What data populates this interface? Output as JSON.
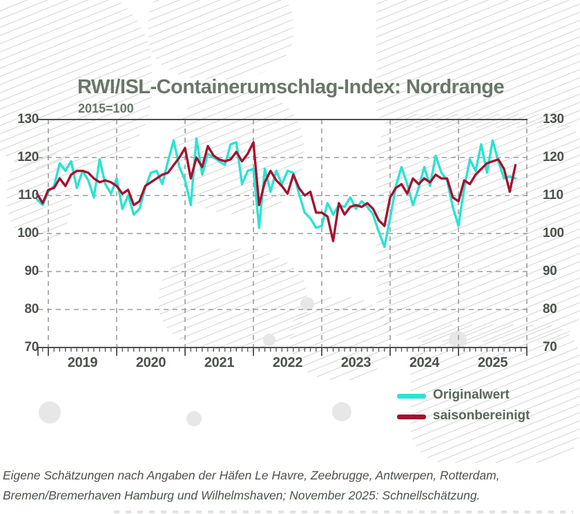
{
  "title": "RWI/ISL-Containerumschlag-Index: Nordrange",
  "subtitle": "2015=100",
  "legend": {
    "original_label": "Originalwert",
    "seasonal_label": "saisonbereinigt"
  },
  "footnote": {
    "line1": "Eigene Schätzungen nach Angaben der Häfen Le Havre, Zeebrugge, Antwerpen, Rotterdam,",
    "line2": "Bremen/Bremerhaven Hamburg und Wilhelmshaven; November 2025: Schnellschätzung."
  },
  "colors": {
    "original": "#2be3d3",
    "seasonal": "#a4122f",
    "title_text": "#697769",
    "axis_text": "#4a524a",
    "axis_line": "#4d4d4d",
    "gridline": "#9c9c9c"
  },
  "chart_data": {
    "type": "line",
    "title": "RWI/ISL-Containerumschlag-Index: Nordrange",
    "subtitle": "2015=100",
    "ylim": [
      70,
      130
    ],
    "y_ticks": [
      130,
      120,
      110,
      100,
      90,
      80,
      70
    ],
    "y_axis_sides": "both",
    "grid": "dashed",
    "x_year_labels": [
      "2019",
      "2020",
      "2021",
      "2022",
      "2023",
      "2024",
      "2025"
    ],
    "x_start_month": "2018-11",
    "x_end_month": "2025-11",
    "legend_position": "bottom-right",
    "series": [
      {
        "name": "Originalwert",
        "color": "#2be3d3",
        "values": [
          109.0,
          107.5,
          111.0,
          112.5,
          118.5,
          116.5,
          119.0,
          112.0,
          116.5,
          114.0,
          109.5,
          119.5,
          113.0,
          110.5,
          114.5,
          106.5,
          110.0,
          105.0,
          106.5,
          112.0,
          116.0,
          116.5,
          113.0,
          119.0,
          124.5,
          117.5,
          114.0,
          107.5,
          125.0,
          115.5,
          121.0,
          120.0,
          119.0,
          118.0,
          123.5,
          124.0,
          113.0,
          116.5,
          117.0,
          101.5,
          117.0,
          111.0,
          116.5,
          113.0,
          116.5,
          116.0,
          110.5,
          105.5,
          104.0,
          101.5,
          102.0,
          108.0,
          105.0,
          107.5,
          107.0,
          109.5,
          106.5,
          108.5,
          107.0,
          105.0,
          100.5,
          96.5,
          104.0,
          112.5,
          117.5,
          113.0,
          107.5,
          112.0,
          117.5,
          112.5,
          120.5,
          116.0,
          114.0,
          107.0,
          102.0,
          112.0,
          119.5,
          116.5,
          123.5,
          116.0,
          124.5,
          119.0,
          114.5,
          115.0,
          114.5
        ]
      },
      {
        "name": "saisonbereinigt",
        "color": "#a4122f",
        "values": [
          110.5,
          108.0,
          111.5,
          112.0,
          114.5,
          112.5,
          115.5,
          116.5,
          116.5,
          116.0,
          114.5,
          113.5,
          114.0,
          113.5,
          112.5,
          110.5,
          111.5,
          107.5,
          108.5,
          112.5,
          113.5,
          114.5,
          115.5,
          116.0,
          118.0,
          120.0,
          122.5,
          114.5,
          120.0,
          117.5,
          123.0,
          120.5,
          119.5,
          119.0,
          119.5,
          121.5,
          119.0,
          121.0,
          124.0,
          107.5,
          113.5,
          116.5,
          114.0,
          112.5,
          110.5,
          115.5,
          112.0,
          110.0,
          111.0,
          105.5,
          105.5,
          104.5,
          98.0,
          108.0,
          105.0,
          107.0,
          107.5,
          107.0,
          108.0,
          106.5,
          103.5,
          102.0,
          109.5,
          112.0,
          113.0,
          110.5,
          114.5,
          113.0,
          114.5,
          113.5,
          115.5,
          114.5,
          114.5,
          109.5,
          108.5,
          114.0,
          113.0,
          115.5,
          117.0,
          118.5,
          119.0,
          119.5,
          117.0,
          111.0,
          118.0
        ]
      }
    ]
  }
}
